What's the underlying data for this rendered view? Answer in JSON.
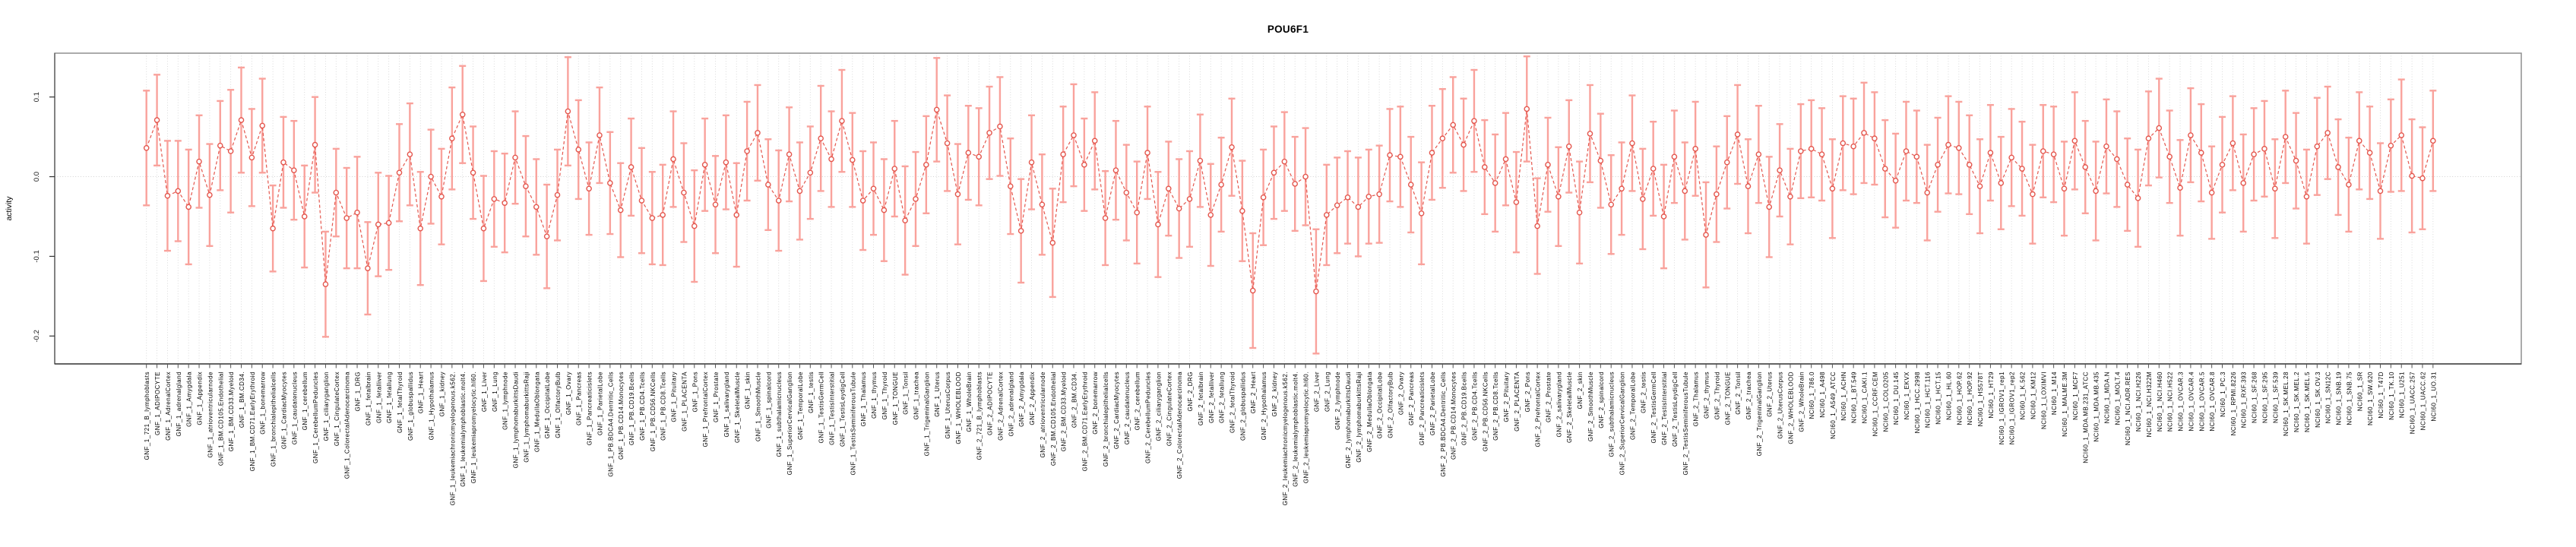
{
  "chart_data": {
    "type": "scatter",
    "subtype": "point-with-error-bars",
    "title": "POU6F1",
    "ylabel": "activity",
    "xlabel": "",
    "ylim": [
      -0.235,
      0.155
    ],
    "yticks": [
      {
        "value": 0.1,
        "label": "0.1"
      },
      {
        "value": 0.0,
        "label": "0.0"
      },
      {
        "value": -0.1,
        "label": "-0.1"
      },
      {
        "value": -0.2,
        "label": "-0.2"
      }
    ],
    "grid": {
      "vertical": "dotted line at every category",
      "horizontal": "dotted line at y=0 only"
    },
    "legend_position": "none",
    "marker": "open-circle",
    "line_style": "dashed-connecting-line",
    "colors": {
      "error_bar": "#f9a29c",
      "series": "#e4574e",
      "grid_line": "#d6d6d6",
      "zero_line": "#cbcbcb",
      "axis": "#333333",
      "box_border": "#8f8f8f",
      "title_text": "#000000",
      "background": "#ffffff"
    },
    "categories": [
      "GNF_1_721_B_lymphoblasts",
      "GNF_1_ADIPOCYTE",
      "GNF_1_AdrenalCortex",
      "GNF_1_adrenalgland",
      "GNF_1_Amygdala",
      "GNF_1_Appendix",
      "GNF_1_atrioventricularnode",
      "GNF_1_BM.CD105.Endothelial",
      "GNF_1_BM.CD33.Myeloid",
      "GNF_1_BM.CD34.",
      "GNF_1_BM.CD71.EarlyErythroid",
      "GNF_1_bonemarrow",
      "GNF_1_bronchialepithelialcells",
      "GNF_1_CardiacMyocytes",
      "GNF_1_caudatenucleus",
      "GNF_1_cerebellum",
      "GNF_1_CerebellumPeduncles",
      "GNF_1_ciliaryganglion",
      "GNF_1_CingulateCortex",
      "GNF_1_ColorectalAdenocarcinoma",
      "GNF_1_DRG",
      "GNF_1_fetalbrain",
      "GNF_1_fetalliver",
      "GNF_1_fetallung",
      "GNF_1_fetalThyroid",
      "GNF_1_globuspallidus",
      "GNF_1_Heart",
      "GNF_1_Hypothalamus",
      "GNF_1_kidney",
      "GNF_1_leukemiachronicmyelogenous.k562.",
      "GNF_1_leukemialymphoblastic.molt4.",
      "GNF_1_leukemiapromyelocytic.hl60.",
      "GNF_1_Liver",
      "GNF_1_Lung",
      "GNF_1_lymphnode",
      "GNF_1_lymphomaburkittsDaudi",
      "GNF_1_lymphomaburkittsRaji",
      "GNF_1_MedullaOblongata",
      "GNF_1_OccipitalLobe",
      "GNF_1_OlfactoryBulb",
      "GNF_1_Ovary",
      "GNF_1_Pancreas",
      "GNF_1_Pancreaticislets",
      "GNF_1_ParietalLobe",
      "GNF_1_PB.BDCA4.Dentritic_Cells",
      "GNF_1_PB.CD14.Monocytes",
      "GNF_1_PB.CD19.Bcells",
      "GNF_1_PB.CD4.Tcells",
      "GNF_1_PB.CD56.NKCells",
      "GNF_1_PB.CD8.Tcells",
      "GNF_1_Pituitary",
      "GNF_1_PLACENTA",
      "GNF_1_Pons",
      "GNF_1_PrefrontalCortex",
      "GNF_1_Prostate",
      "GNF_1_salivarygland",
      "GNF_1_SkeletalMuscle",
      "GNF_1_skin",
      "GNF_1_SmoothMuscle",
      "GNF_1_spinalcord",
      "GNF_1_subthalamicnucleus",
      "GNF_1_SuperiorCervicalGanglion",
      "GNF_1_TemporalLobe",
      "GNF_1_testis",
      "GNF_1_TestisGermCell",
      "GNF_1_TestisInterstitial",
      "GNF_1_TestisLeydigCell",
      "GNF_1_TestisSeminiferousTubule",
      "GNF_1_Thalamus",
      "GNF_1_thymus",
      "GNF_1_Thyroid",
      "GNF_1_TONGUE",
      "GNF_1_Tonsil",
      "GNF_1_trachea",
      "GNF_1_TrigeminalGanglion",
      "GNF_1_Uterus",
      "GNF_1_UterusCorpus",
      "GNF_1_WHOLEBLOOD",
      "GNF_1_WholeBrain",
      "GNF_2_721_B_lymphoblasts",
      "GNF_2_ADIPOCYTE",
      "GNF_2_AdrenalCortex",
      "GNF_2_adrenalgland",
      "GNF_2_Amygdala",
      "GNF_2_Appendix",
      "GNF_2_atrioventricularnode",
      "GNF_2_BM.CD105.Endothelial",
      "GNF_2_BM.CD33.Myeloid",
      "GNF_2_BM.CD34.",
      "GNF_2_BM.CD71.EarlyErythroid",
      "GNF_2_bonemarrow",
      "GNF_2_bronchialepithelialcells",
      "GNF_2_CardiacMyocytes",
      "GNF_2_caudatenucleus",
      "GNF_2_cerebellum",
      "GNF_2_CerebellumPeduncles",
      "GNF_2_ciliaryganglion",
      "GNF_2_CingulateCortex",
      "GNF_2_ColorectalAdenocarcinoma",
      "GNF_2_DRG",
      "GNF_2_fetalbrain",
      "GNF_2_fetalliver",
      "GNF_2_fetallung",
      "GNF_2_fetalThyroid",
      "GNF_2_globuspallidus",
      "GNF_2_Heart",
      "GNF_2_Hypothalamus",
      "GNF_2_kidney",
      "GNF_2_leukemiachronicmyelogenous.k562.",
      "GNF_2_leukemialymphoblastic.molt4.",
      "GNF_2_leukemiapromyelocytic.hl60.",
      "GNF_2_Liver",
      "GNF_2_Lung",
      "GNF_2_lymphnode",
      "GNF_2_lymphomaburkittsDaudi",
      "GNF_2_lymphomaburkittsRaji",
      "GNF_2_MedullaOblongata",
      "GNF_2_OccipitalLobe",
      "GNF_2_OlfactoryBulb",
      "GNF_2_Ovary",
      "GNF_2_Pancreas",
      "GNF_2_Pancreaticislets",
      "GNF_2_ParietalLobe",
      "GNF_2_PB.BDCA4.Dentritic_Cells",
      "GNF_2_PB.CD14.Monocytes",
      "GNF_2_PB.CD19.Bcells",
      "GNF_2_PB.CD4.Tcells",
      "GNF_2_PB.CD56.NKCells",
      "GNF_2_PB.CD8.Tcells",
      "GNF_2_Pituitary",
      "GNF_2_PLACENTA",
      "GNF_2_Pons",
      "GNF_2_PrefrontalCortex",
      "GNF_2_Prostate",
      "GNF_2_salivarygland",
      "GNF_2_SkeletalMuscle",
      "GNF_2_skin",
      "GNF_2_SmoothMuscle",
      "GNF_2_spinalcord",
      "GNF_2_subthalamicnucleus",
      "GNF_2_SuperiorCervicalGanglion",
      "GNF_2_TemporalLobe",
      "GNF_2_testis",
      "GNF_2_TestisGermCell",
      "GNF_2_TestisInterstitial",
      "GNF_2_TestisLeydigCell",
      "GNF_2_TestisSeminiferousTubule",
      "GNF_2_Thalamus",
      "GNF_2_thymus",
      "GNF_2_Thyroid",
      "GNF_2_TONGUE",
      "GNF_2_Tonsil",
      "GNF_2_trachea",
      "GNF_2_TrigeminalGanglion",
      "GNF_2_Uterus",
      "GNF_2_UterusCorpus",
      "GNF_2_WHOLEBLOOD",
      "GNF_2_WholeBrain",
      "NCI60_1_786.0",
      "NCI60_1_A498",
      "NCI60_1_A549_ATCC",
      "NCI60_1_ACHN",
      "NCI60_1_BT.549",
      "NCI60_1_CAKI.1",
      "NCI60_1_CCRF.CEM",
      "NCI60_1_COLO205",
      "NCI60_1_DU.145",
      "NCI60_1_EKVX",
      "NCI60_1_HCC.2998",
      "NCI60_1_HCT.116",
      "NCI60_1_HCT.15",
      "NCI60_1_HL.60",
      "NCI60_1_HOP.62",
      "NCI60_1_HOP.92",
      "NCI60_1_HS578T",
      "NCI60_1_HT29",
      "NCI60_1_IGROV1_rep1",
      "NCI60_1_IGROV1_rep2",
      "NCI60_1_K.562",
      "NCI60_1_KM12",
      "NCI60_1_LOXIMVI",
      "NCI60_1_M14",
      "NCI60_1_MALME.3M",
      "NCI60_1_MCF7",
      "NCI60_1_MDA.MB.231_ATCC",
      "NCI60_1_MDA.MB.435",
      "NCI60_1_MDA.N",
      "NCI60_1_MOLT.4",
      "NCI60_1_NCI.ADR.RES",
      "NCI60_1_NCI.H226",
      "NCI60_1_NCI.H322M",
      "NCI60_1_NCI.H460",
      "NCI60_1_NCI.H522",
      "NCI60_1_OVCAR.3",
      "NCI60_1_OVCAR.4",
      "NCI60_1_OVCAR.5",
      "NCI60_1_OVCAR.8",
      "NCI60_1_PC.3",
      "NCI60_1_RPMI.8226",
      "NCI60_1_RXF.393",
      "NCI60_1_SF.268",
      "NCI60_1_SF.295",
      "NCI60_1_SF.539",
      "NCI60_1_SK.MEL.28",
      "NCI60_1_SK.MEL.2",
      "NCI60_1_SK.MEL.5",
      "NCI60_1_SK.OV.3",
      "NCI60_1_SN12C",
      "NCI60_1_SNB.19",
      "NCI60_1_SNB.75",
      "NCI60_1_SR",
      "NCI60_1_SW.620",
      "NCI60_1_T47D",
      "NCI60_1_TK.10",
      "NCI60_1_U251",
      "NCI60_1_UACC.257",
      "NCI60_1_UACC.62",
      "NCI60_1_UO.31"
    ],
    "values": [
      0.036,
      0.071,
      -0.024,
      -0.018,
      -0.038,
      0.019,
      -0.023,
      0.039,
      0.032,
      0.071,
      0.024,
      0.064,
      -0.065,
      0.018,
      0.008,
      -0.05,
      0.04,
      -0.135,
      -0.02,
      -0.052,
      -0.045,
      -0.115,
      -0.06,
      -0.058,
      0.005,
      0.028,
      -0.065,
      0.0,
      -0.025,
      0.048,
      0.078,
      0.005,
      -0.065,
      -0.028,
      -0.033,
      0.024,
      -0.012,
      -0.038,
      -0.075,
      -0.023,
      0.082,
      0.034,
      -0.015,
      0.052,
      -0.008,
      -0.042,
      0.012,
      -0.03,
      -0.052,
      -0.048,
      0.022,
      -0.02,
      -0.062,
      0.015,
      -0.035,
      0.018,
      -0.048,
      0.032,
      0.055,
      -0.01,
      -0.03,
      0.028,
      -0.018,
      0.005,
      0.048,
      0.022,
      0.07,
      0.021,
      -0.03,
      -0.015,
      -0.042,
      0.01,
      -0.055,
      -0.028,
      0.015,
      0.084,
      0.042,
      -0.022,
      0.03,
      0.025,
      0.055,
      0.063,
      -0.012,
      -0.068,
      0.018,
      -0.035,
      -0.083,
      0.028,
      0.052,
      0.015,
      0.045,
      -0.052,
      0.008,
      -0.02,
      -0.045,
      0.03,
      -0.06,
      -0.015,
      -0.04,
      -0.028,
      0.02,
      -0.048,
      -0.01,
      0.037,
      -0.043,
      -0.143,
      -0.026,
      0.005,
      0.019,
      -0.009,
      0.0,
      -0.144,
      -0.048,
      -0.036,
      -0.026,
      -0.038,
      -0.025,
      -0.022,
      0.027,
      0.025,
      -0.01,
      -0.046,
      0.03,
      0.048,
      0.065,
      0.04,
      0.07,
      0.012,
      -0.008,
      0.022,
      -0.032,
      0.085,
      -0.062,
      0.015,
      -0.025,
      0.038,
      -0.045,
      0.054,
      0.02,
      -0.035,
      -0.015,
      0.042,
      -0.028,
      0.01,
      -0.05,
      0.025,
      -0.018,
      0.035,
      -0.073,
      -0.022,
      0.018,
      0.053,
      -0.012,
      0.028,
      -0.038,
      0.008,
      -0.025,
      0.032,
      0.035,
      0.028,
      -0.015,
      0.042,
      0.038,
      0.055,
      0.048,
      0.01,
      -0.005,
      0.032,
      0.025,
      -0.02,
      0.015,
      0.04,
      0.036,
      0.015,
      -0.012,
      0.03,
      -0.008,
      0.024,
      0.01,
      -0.022,
      0.032,
      0.028,
      -0.015,
      0.045,
      0.012,
      -0.018,
      0.038,
      0.022,
      -0.01,
      -0.027,
      0.048,
      0.061,
      0.025,
      -0.014,
      0.052,
      0.03,
      -0.02,
      0.015,
      0.042,
      -0.008,
      0.028,
      0.035,
      -0.015,
      0.05,
      0.02,
      -0.025,
      0.038,
      0.055,
      0.012,
      -0.01,
      0.045,
      0.03,
      -0.018,
      0.039,
      0.052,
      0.001,
      -0.002,
      0.045
    ],
    "errors": [
      0.072,
      0.057,
      0.069,
      0.063,
      0.072,
      0.058,
      0.064,
      0.056,
      0.077,
      0.066,
      0.061,
      0.059,
      0.054,
      0.057,
      0.062,
      0.064,
      0.06,
      0.066,
      0.055,
      0.063,
      0.07,
      0.058,
      0.065,
      0.059,
      0.061,
      0.064,
      0.071,
      0.059,
      0.06,
      0.064,
      0.061,
      0.058,
      0.066,
      0.06,
      0.062,
      0.058,
      0.063,
      0.06,
      0.065,
      0.057,
      0.068,
      0.062,
      0.058,
      0.06,
      0.064,
      0.059,
      0.061,
      0.066,
      0.058,
      0.063,
      0.06,
      0.062,
      0.07,
      0.058,
      0.061,
      0.059,
      0.065,
      0.062,
      0.06,
      0.057,
      0.063,
      0.059,
      0.061,
      0.058,
      0.066,
      0.06,
      0.064,
      0.059,
      0.062,
      0.058,
      0.064,
      0.06,
      0.068,
      0.059,
      0.061,
      0.065,
      0.06,
      0.063,
      0.059,
      0.061,
      0.058,
      0.062,
      0.06,
      0.065,
      0.059,
      0.063,
      0.068,
      0.06,
      0.064,
      0.058,
      0.061,
      0.059,
      0.062,
      0.06,
      0.064,
      0.058,
      0.066,
      0.059,
      0.062,
      0.06,
      0.058,
      0.064,
      0.059,
      0.061,
      0.063,
      0.072,
      0.06,
      0.058,
      0.062,
      0.059,
      0.061,
      0.078,
      0.063,
      0.06,
      0.058,
      0.062,
      0.059,
      0.061,
      0.058,
      0.063,
      0.06,
      0.064,
      0.059,
      0.062,
      0.06,
      0.058,
      0.064,
      0.059,
      0.061,
      0.058,
      0.063,
      0.066,
      0.06,
      0.059,
      0.062,
      0.058,
      0.064,
      0.061,
      0.059,
      0.062,
      0.058,
      0.06,
      0.063,
      0.059,
      0.065,
      0.058,
      0.061,
      0.059,
      0.066,
      0.06,
      0.058,
      0.062,
      0.059,
      0.061,
      0.063,
      0.058,
      0.06,
      0.059,
      0.061,
      0.058,
      0.062,
      0.059,
      0.06,
      0.063,
      0.058,
      0.061,
      0.059,
      0.062,
      0.058,
      0.06,
      0.059,
      0.061,
      0.058,
      0.062,
      0.059,
      0.06,
      0.058,
      0.061,
      0.059,
      0.062,
      0.058,
      0.06,
      0.059,
      0.061,
      0.058,
      0.062,
      0.059,
      0.06,
      0.058,
      0.061,
      0.059,
      0.062,
      0.058,
      0.06,
      0.059,
      0.061,
      0.058,
      0.06,
      0.059,
      0.061,
      0.058,
      0.06,
      0.062,
      0.058,
      0.06,
      0.059,
      0.061,
      0.058,
      0.06,
      0.059,
      0.061,
      0.058,
      0.06,
      0.058,
      0.07,
      0.071,
      0.064,
      0.063
    ]
  }
}
